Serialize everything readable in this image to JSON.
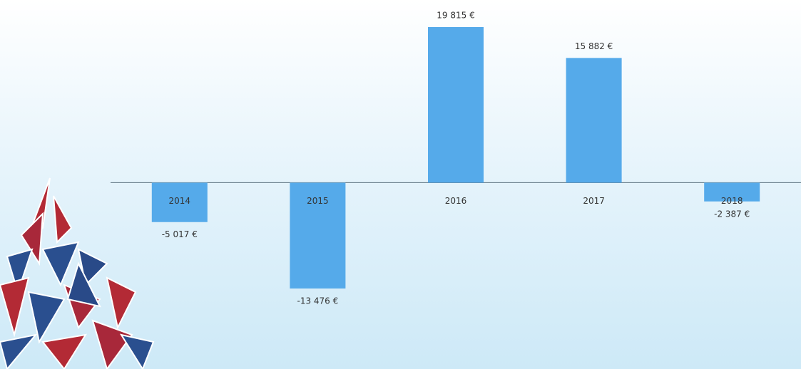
{
  "chart_data": {
    "type": "bar",
    "categories": [
      "2014",
      "2015",
      "2016",
      "2017",
      "2018"
    ],
    "values": [
      -5017,
      -13476,
      19815,
      15882,
      -2387
    ],
    "value_labels": [
      "-5 017 €",
      "-13 476 €",
      "19 815 €",
      "15 882 €",
      "-2 387 €"
    ],
    "color": "#55aaea"
  }
}
